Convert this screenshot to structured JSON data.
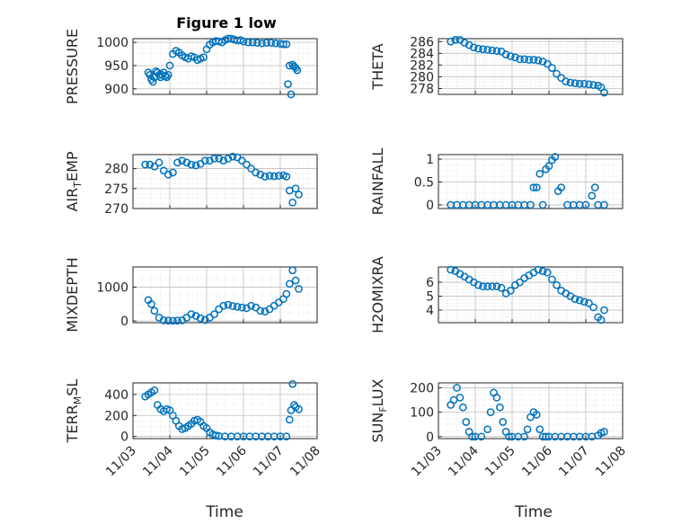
{
  "figure": {
    "title": "Figure 1 low",
    "xlabel": "Time",
    "date_ticks": [
      "11/03",
      "11/04",
      "11/05",
      "11/06",
      "11/07",
      "11/08"
    ],
    "marker_color": "#0072BD"
  },
  "chart_data": [
    {
      "type": "scatter",
      "ylabel": "PRESSURE",
      "xlim": [
        "11/03",
        "11/08"
      ],
      "ylim": [
        888,
        1008
      ],
      "yticks": [
        900,
        950,
        1000
      ],
      "x": [
        "11/03 10:00",
        "11/03 11:00",
        "11/03 12:00",
        "11/03 13:00",
        "11/03 14:00",
        "11/03 15:00",
        "11/03 16:00",
        "11/03 17:00",
        "11/03 18:00",
        "11/03 19:00",
        "11/03 20:00",
        "11/03 21:00",
        "11/03 22:00",
        "11/03 23:00",
        "11/04 00:00",
        "11/04 02:00",
        "11/04 04:00",
        "11/04 06:00",
        "11/04 08:00",
        "11/04 10:00",
        "11/04 12:00",
        "11/04 14:00",
        "11/04 16:00",
        "11/04 18:00",
        "11/04 20:00",
        "11/04 22:00",
        "11/05 00:00",
        "11/05 02:00",
        "11/05 04:00",
        "11/05 06:00",
        "11/05 08:00",
        "11/05 10:00",
        "11/05 12:00",
        "11/05 14:00",
        "11/05 16:00",
        "11/05 18:00",
        "11/05 20:00",
        "11/05 22:00",
        "11/06 00:00",
        "11/06 03:00",
        "11/06 06:00",
        "11/06 09:00",
        "11/06 12:00",
        "11/06 15:00",
        "11/06 18:00",
        "11/06 21:00",
        "11/07 00:00",
        "11/07 02:00",
        "11/07 04:00",
        "11/07 05:00",
        "11/07 06:00",
        "11/07 07:00",
        "11/07 08:00",
        "11/07 09:00",
        "11/07 10:00",
        "11/07 11:00"
      ],
      "y": [
        935,
        930,
        920,
        915,
        925,
        938,
        935,
        930,
        925,
        930,
        935,
        928,
        925,
        930,
        950,
        975,
        982,
        978,
        972,
        968,
        965,
        970,
        968,
        962,
        965,
        968,
        985,
        995,
        1000,
        1003,
        1002,
        1000,
        1005,
        1008,
        1008,
        1006,
        1004,
        1005,
        1002,
        1000,
        1000,
        999,
        998,
        999,
        999,
        998,
        997,
        996,
        996,
        910,
        950,
        888,
        952,
        948,
        945,
        940
      ]
    },
    {
      "type": "scatter",
      "ylabel": "THETA",
      "xlim": [
        "11/03",
        "11/08"
      ],
      "ylim": [
        277,
        286.5
      ],
      "yticks": [
        278,
        280,
        282,
        284,
        286
      ],
      "x": [
        "11/03 08:00",
        "11/03 11:00",
        "11/03 14:00",
        "11/03 17:00",
        "11/03 20:00",
        "11/03 23:00",
        "11/04 02:00",
        "11/04 05:00",
        "11/04 08:00",
        "11/04 11:00",
        "11/04 14:00",
        "11/04 17:00",
        "11/04 20:00",
        "11/04 23:00",
        "11/05 02:00",
        "11/05 05:00",
        "11/05 08:00",
        "11/05 11:00",
        "11/05 14:00",
        "11/05 17:00",
        "11/05 20:00",
        "11/05 23:00",
        "11/06 02:00",
        "11/06 05:00",
        "11/06 08:00",
        "11/06 11:00",
        "11/06 14:00",
        "11/06 17:00",
        "11/06 20:00",
        "11/06 23:00",
        "11/07 02:00",
        "11/07 05:00",
        "11/07 08:00",
        "11/07 10:00",
        "11/07 12:00"
      ],
      "y": [
        286,
        286.3,
        286.3,
        285.8,
        285.4,
        285.0,
        284.8,
        284.7,
        284.6,
        284.5,
        284.4,
        284.3,
        283.8,
        283.5,
        283.3,
        283.0,
        283.0,
        282.9,
        282.9,
        282.8,
        282.6,
        282.2,
        281.5,
        280.5,
        279.8,
        279.2,
        279.0,
        278.9,
        278.8,
        278.8,
        278.7,
        278.6,
        278.5,
        278.2,
        277.3
      ]
    },
    {
      "type": "scatter",
      "ylabel": "AIR_TEMP",
      "xlim": [
        "11/03",
        "11/08"
      ],
      "ylim": [
        270,
        283.5
      ],
      "yticks": [
        270,
        275,
        280
      ],
      "x": [
        "11/03 08:00",
        "11/03 11:00",
        "11/03 14:00",
        "11/03 17:00",
        "11/03 20:00",
        "11/03 23:00",
        "11/04 02:00",
        "11/04 05:00",
        "11/04 08:00",
        "11/04 11:00",
        "11/04 14:00",
        "11/04 17:00",
        "11/04 20:00",
        "11/04 23:00",
        "11/05 02:00",
        "11/05 05:00",
        "11/05 08:00",
        "11/05 11:00",
        "11/05 14:00",
        "11/05 17:00",
        "11/05 20:00",
        "11/05 23:00",
        "11/06 02:00",
        "11/06 05:00",
        "11/06 08:00",
        "11/06 11:00",
        "11/06 14:00",
        "11/06 17:00",
        "11/06 20:00",
        "11/06 23:00",
        "11/07 02:00",
        "11/07 04:00",
        "11/07 06:00",
        "11/07 08:00",
        "11/07 10:00",
        "11/07 12:00"
      ],
      "y": [
        281,
        281,
        280.5,
        281.5,
        279.5,
        278.5,
        279,
        281.5,
        282,
        281.5,
        281,
        280.8,
        281.2,
        282,
        282,
        282.5,
        282.5,
        282,
        282.5,
        283,
        282.8,
        282,
        281,
        280,
        279,
        278.5,
        278,
        278.2,
        278.1,
        278.2,
        278.3,
        278,
        274.5,
        271.5,
        275,
        273.5
      ]
    },
    {
      "type": "scatter",
      "ylabel": "RAINFALL",
      "xlim": [
        "11/03",
        "11/08"
      ],
      "ylim": [
        -0.08,
        1.1
      ],
      "yticks": [
        0,
        0.5,
        1
      ],
      "x": [
        "11/03 08:00",
        "11/03 12:00",
        "11/03 16:00",
        "11/03 20:00",
        "11/04 00:00",
        "11/04 04:00",
        "11/04 08:00",
        "11/04 12:00",
        "11/04 16:00",
        "11/04 20:00",
        "11/05 00:00",
        "11/05 04:00",
        "11/05 08:00",
        "11/05 12:00",
        "11/05 14:00",
        "11/05 16:00",
        "11/05 18:00",
        "11/05 20:00",
        "11/05 22:00",
        "11/06 00:00",
        "11/06 02:00",
        "11/06 04:00",
        "11/06 06:00",
        "11/06 08:00",
        "11/06 12:00",
        "11/06 16:00",
        "11/06 20:00",
        "11/07 00:00",
        "11/07 04:00",
        "11/07 06:00",
        "11/07 08:00",
        "11/07 12:00"
      ],
      "y": [
        0,
        0,
        0,
        0,
        0,
        0,
        0,
        0,
        0,
        0,
        0,
        0,
        0,
        0,
        0.38,
        0.38,
        0.68,
        0,
        0.78,
        0.85,
        0.98,
        1.05,
        0.3,
        0.38,
        0,
        0,
        0,
        0,
        0.2,
        0.38,
        0,
        0
      ]
    },
    {
      "type": "scatter",
      "ylabel": "MIXDEPTH",
      "xlim": [
        "11/03",
        "11/08"
      ],
      "ylim": [
        -50,
        1600
      ],
      "yticks": [
        0,
        1000
      ],
      "x": [
        "11/03 10:00",
        "11/03 12:00",
        "11/03 14:00",
        "11/03 17:00",
        "11/03 20:00",
        "11/03 23:00",
        "11/04 02:00",
        "11/04 05:00",
        "11/04 08:00",
        "11/04 11:00",
        "11/04 14:00",
        "11/04 17:00",
        "11/04 20:00",
        "11/04 23:00",
        "11/05 02:00",
        "11/05 05:00",
        "11/05 08:00",
        "11/05 11:00",
        "11/05 14:00",
        "11/05 17:00",
        "11/05 20:00",
        "11/05 23:00",
        "11/06 02:00",
        "11/06 05:00",
        "11/06 08:00",
        "11/06 11:00",
        "11/06 14:00",
        "11/06 17:00",
        "11/06 20:00",
        "11/06 23:00",
        "11/07 02:00",
        "11/07 04:00",
        "11/07 06:00",
        "11/07 08:00",
        "11/07 10:00",
        "11/07 12:00"
      ],
      "y": [
        620,
        500,
        300,
        100,
        20,
        10,
        5,
        10,
        20,
        100,
        200,
        150,
        80,
        30,
        100,
        200,
        350,
        450,
        480,
        440,
        420,
        400,
        380,
        450,
        400,
        300,
        280,
        350,
        450,
        550,
        650,
        800,
        1100,
        1500,
        1200,
        950
      ]
    },
    {
      "type": "scatter",
      "ylabel": "H2OMIXRA",
      "xlim": [
        "11/03",
        "11/08"
      ],
      "ylim": [
        3.1,
        7.1
      ],
      "yticks": [
        4,
        5,
        6
      ],
      "x": [
        "11/03 08:00",
        "11/03 11:00",
        "11/03 14:00",
        "11/03 17:00",
        "11/03 20:00",
        "11/03 23:00",
        "11/04 02:00",
        "11/04 05:00",
        "11/04 08:00",
        "11/04 11:00",
        "11/04 14:00",
        "11/04 17:00",
        "11/04 20:00",
        "11/04 23:00",
        "11/05 02:00",
        "11/05 05:00",
        "11/05 08:00",
        "11/05 11:00",
        "11/05 14:00",
        "11/05 17:00",
        "11/05 20:00",
        "11/05 23:00",
        "11/06 02:00",
        "11/06 05:00",
        "11/06 08:00",
        "11/06 11:00",
        "11/06 14:00",
        "11/06 17:00",
        "11/06 20:00",
        "11/06 23:00",
        "11/07 02:00",
        "11/07 05:00",
        "11/07 08:00",
        "11/07 10:00",
        "11/07 12:00"
      ],
      "y": [
        6.9,
        6.8,
        6.6,
        6.4,
        6.2,
        6.0,
        5.8,
        5.7,
        5.7,
        5.7,
        5.7,
        5.6,
        5.2,
        5.4,
        5.8,
        6.0,
        6.3,
        6.5,
        6.7,
        6.9,
        6.8,
        6.7,
        6.2,
        5.8,
        5.4,
        5.2,
        5.0,
        4.8,
        4.7,
        4.6,
        4.5,
        4.2,
        3.5,
        3.3,
        4.0
      ]
    },
    {
      "type": "scatter",
      "ylabel": "TERR_MSL",
      "xlim": [
        "11/03",
        "11/08"
      ],
      "ylim": [
        -20,
        510
      ],
      "yticks": [
        0,
        200,
        400
      ],
      "x": [
        "11/03 08:00",
        "11/03 10:00",
        "11/03 12:00",
        "11/03 14:00",
        "11/03 16:00",
        "11/03 18:00",
        "11/03 20:00",
        "11/03 22:00",
        "11/04 00:00",
        "11/04 02:00",
        "11/04 04:00",
        "11/04 06:00",
        "11/04 08:00",
        "11/04 10:00",
        "11/04 12:00",
        "11/04 14:00",
        "11/04 16:00",
        "11/04 18:00",
        "11/04 20:00",
        "11/04 22:00",
        "11/05 00:00",
        "11/05 02:00",
        "11/05 04:00",
        "11/05 06:00",
        "11/05 08:00",
        "11/05 12:00",
        "11/05 16:00",
        "11/05 20:00",
        "11/06 00:00",
        "11/06 04:00",
        "11/06 08:00",
        "11/06 12:00",
        "11/06 16:00",
        "11/06 20:00",
        "11/07 00:00",
        "11/07 04:00",
        "11/07 06:00",
        "11/07 07:00",
        "11/07 08:00",
        "11/07 09:00",
        "11/07 10:00",
        "11/07 12:00"
      ],
      "y": [
        380,
        400,
        420,
        440,
        300,
        260,
        240,
        260,
        250,
        200,
        150,
        100,
        70,
        80,
        100,
        120,
        150,
        160,
        140,
        100,
        80,
        40,
        20,
        10,
        5,
        0,
        0,
        0,
        0,
        0,
        0,
        0,
        0,
        0,
        0,
        0,
        160,
        250,
        500,
        300,
        280,
        260
      ]
    },
    {
      "type": "scatter",
      "ylabel": "SUN_FLUX",
      "xlim": [
        "11/03",
        "11/08"
      ],
      "ylim": [
        -8,
        220
      ],
      "yticks": [
        0,
        100,
        200
      ],
      "x": [
        "11/03 08:00",
        "11/03 10:00",
        "11/03 12:00",
        "11/03 14:00",
        "11/03 16:00",
        "11/03 18:00",
        "11/03 20:00",
        "11/03 22:00",
        "11/04 00:00",
        "11/04 04:00",
        "11/04 08:00",
        "11/04 10:00",
        "11/04 12:00",
        "11/04 14:00",
        "11/04 16:00",
        "11/04 18:00",
        "11/04 20:00",
        "11/04 22:00",
        "11/05 00:00",
        "11/05 04:00",
        "11/05 08:00",
        "11/05 10:00",
        "11/05 12:00",
        "11/05 14:00",
        "11/05 16:00",
        "11/05 18:00",
        "11/05 20:00",
        "11/05 22:00",
        "11/06 00:00",
        "11/06 04:00",
        "11/06 08:00",
        "11/06 12:00",
        "11/06 16:00",
        "11/06 20:00",
        "11/07 00:00",
        "11/07 04:00",
        "11/07 08:00",
        "11/07 10:00",
        "11/07 12:00"
      ],
      "y": [
        130,
        150,
        200,
        160,
        120,
        60,
        20,
        0,
        0,
        0,
        30,
        100,
        180,
        160,
        120,
        60,
        20,
        0,
        0,
        0,
        0,
        30,
        80,
        100,
        90,
        30,
        0,
        0,
        0,
        0,
        0,
        0,
        0,
        0,
        0,
        0,
        5,
        15,
        20
      ]
    }
  ]
}
